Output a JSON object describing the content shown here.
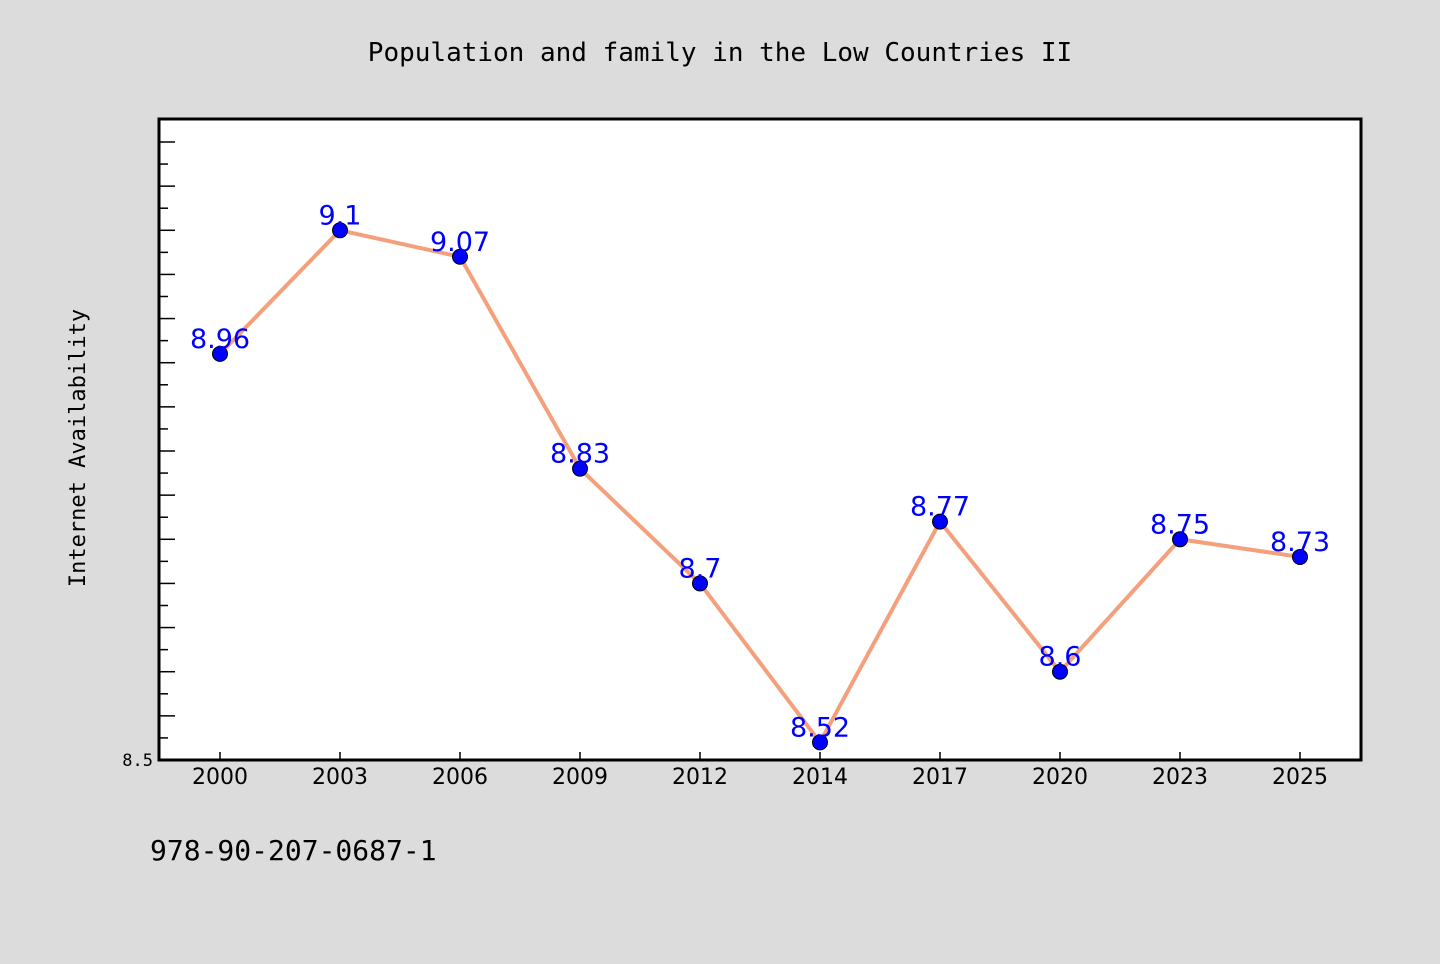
{
  "chart_data": {
    "type": "line",
    "title": "Population and family in the Low Countries II",
    "xlabel": "",
    "ylabel": "Internet Availability",
    "categories": [
      "2000",
      "2003",
      "2006",
      "2009",
      "2012",
      "2014",
      "2017",
      "2020",
      "2023",
      "2025"
    ],
    "series": [
      {
        "values": [
          8.96,
          9.1,
          9.07,
          8.83,
          8.7,
          8.52,
          8.77,
          8.6,
          8.75,
          8.73
        ]
      }
    ],
    "data_labels": [
      "8.96",
      "9.1",
      "9.07",
      "8.83",
      "8.7",
      "8.52",
      "8.77",
      "8.6",
      "8.75",
      "8.73"
    ],
    "ylim": [
      8.5,
      9.2
    ],
    "ytick_labels": [
      {
        "value": 8.5,
        "label": "8.5"
      }
    ],
    "grid": false,
    "line_color": "#f4a07c",
    "marker_color": "#0000ff",
    "label_color": "#0000ff",
    "background_color": "#dcdcdc",
    "plot_background": "#ffffff"
  },
  "footer": {
    "isbn": "978-90-207-0687-1"
  }
}
